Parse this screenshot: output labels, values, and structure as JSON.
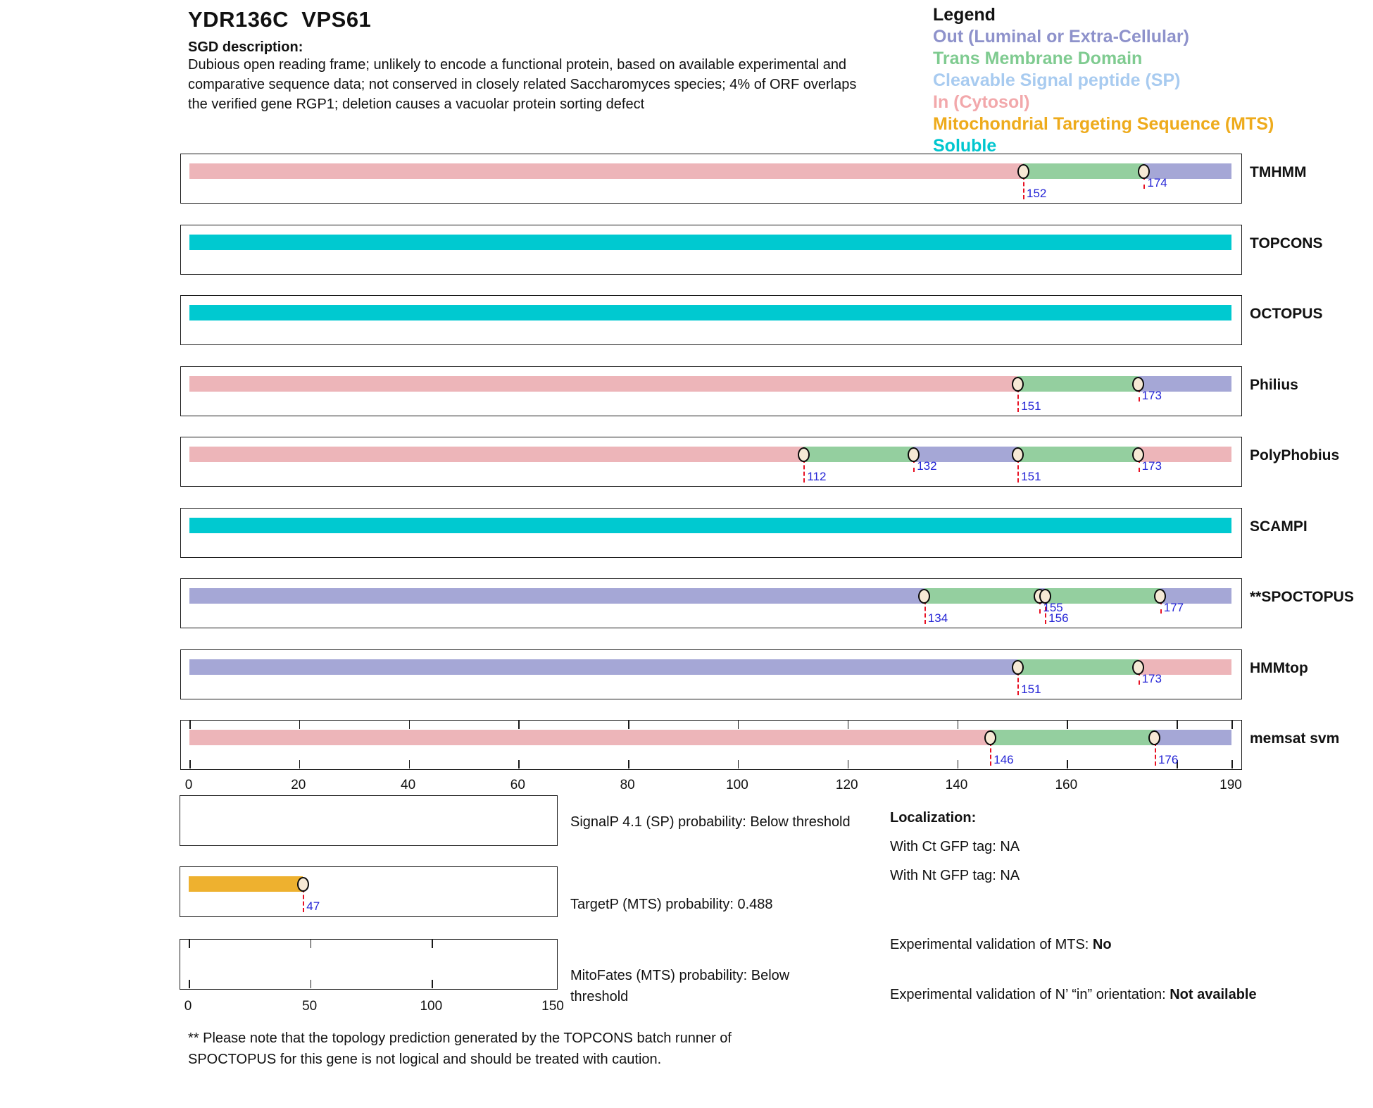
{
  "header": {
    "title": "YDR136C  VPS61",
    "sgd_label": "SGD description:",
    "description": "Dubious open reading frame; unlikely to encode a functional protein, based on available experimental and\ncomparative sequence data; not conserved in closely related Saccharomyces species; 4% of ORF overlaps\nthe verified gene RGP1; deletion causes a vacuolar protein sorting defect"
  },
  "legend": {
    "title": "Legend",
    "items": [
      {
        "label": "Out (Luminal or Extra-Cellular)",
        "color": "#8e92cb",
        "region": "out"
      },
      {
        "label": "Trans Membrane Domain",
        "color": "#7fcb90",
        "region": "tm"
      },
      {
        "label": "Cleavable Signal peptide (SP)",
        "color": "#a8cbf0",
        "region": "sp"
      },
      {
        "label": "In (Cytosol)",
        "color": "#f2a8ab",
        "region": "in"
      },
      {
        "label": "Mitochondrial Targeting Sequence (MTS)",
        "color": "#eeab1c",
        "region": "mts"
      },
      {
        "label": "Soluble",
        "color": "#00c6cf",
        "region": "soluble"
      }
    ]
  },
  "colors": {
    "region_fill": {
      "in": "#edb5b9",
      "tm": "#94cf9f",
      "out": "#a5a7d6",
      "soluble": "#00c9d0",
      "mts": "#eeb12f",
      "sp": "#a8cbf0"
    },
    "marker_line": "#e81123",
    "marker_label": "#2424d6",
    "marker_fill": "#f6e9d5"
  },
  "chart_data": {
    "type": "topology-tracks",
    "xlim": [
      0,
      190
    ],
    "axis_tick_labels": [
      0,
      20,
      40,
      60,
      80,
      100,
      120,
      140,
      160,
      190
    ],
    "in_box_ticks": [
      0,
      20,
      40,
      60,
      80,
      100,
      120,
      140,
      160,
      180,
      190
    ],
    "tracks": [
      {
        "name": "TMHMM",
        "segments": [
          {
            "region": "in",
            "start": 0,
            "end": 152
          },
          {
            "region": "tm",
            "start": 152,
            "end": 174
          },
          {
            "region": "out",
            "start": 174,
            "end": 190
          }
        ],
        "markers": [
          {
            "pos": 152,
            "level": 0
          },
          {
            "pos": 174,
            "level": 1
          }
        ],
        "ticks": false
      },
      {
        "name": "TOPCONS",
        "segments": [
          {
            "region": "soluble",
            "start": 0,
            "end": 190
          }
        ],
        "markers": [],
        "ticks": false
      },
      {
        "name": "OCTOPUS",
        "segments": [
          {
            "region": "soluble",
            "start": 0,
            "end": 190
          }
        ],
        "markers": [],
        "ticks": false
      },
      {
        "name": "Philius",
        "segments": [
          {
            "region": "in",
            "start": 0,
            "end": 151
          },
          {
            "region": "tm",
            "start": 151,
            "end": 173
          },
          {
            "region": "out",
            "start": 173,
            "end": 190
          }
        ],
        "markers": [
          {
            "pos": 151,
            "level": 0
          },
          {
            "pos": 173,
            "level": 1
          }
        ],
        "ticks": false
      },
      {
        "name": "PolyPhobius",
        "segments": [
          {
            "region": "in",
            "start": 0,
            "end": 112
          },
          {
            "region": "tm",
            "start": 112,
            "end": 132
          },
          {
            "region": "out",
            "start": 132,
            "end": 151
          },
          {
            "region": "tm",
            "start": 151,
            "end": 173
          },
          {
            "region": "in",
            "start": 173,
            "end": 190
          }
        ],
        "markers": [
          {
            "pos": 112,
            "level": 0
          },
          {
            "pos": 132,
            "level": 1
          },
          {
            "pos": 151,
            "level": 0
          },
          {
            "pos": 173,
            "level": 1
          }
        ],
        "ticks": false
      },
      {
        "name": "SCAMPI",
        "segments": [
          {
            "region": "soluble",
            "start": 0,
            "end": 190
          }
        ],
        "markers": [],
        "ticks": false
      },
      {
        "name": "**SPOCTOPUS",
        "segments": [
          {
            "region": "out",
            "start": 0,
            "end": 134
          },
          {
            "region": "tm",
            "start": 134,
            "end": 155
          },
          {
            "region": "out",
            "start": 155,
            "end": 156
          },
          {
            "region": "tm",
            "start": 156,
            "end": 177
          },
          {
            "region": "out",
            "start": 177,
            "end": 190
          }
        ],
        "markers": [
          {
            "pos": 134,
            "level": 0
          },
          {
            "pos": 155,
            "level": 1
          },
          {
            "pos": 156,
            "level": 0
          },
          {
            "pos": 177,
            "level": 1
          }
        ],
        "ticks": false
      },
      {
        "name": "HMMtop",
        "segments": [
          {
            "region": "out",
            "start": 0,
            "end": 151
          },
          {
            "region": "tm",
            "start": 151,
            "end": 173
          },
          {
            "region": "in",
            "start": 173,
            "end": 190
          }
        ],
        "markers": [
          {
            "pos": 151,
            "level": 0
          },
          {
            "pos": 173,
            "level": 1
          }
        ],
        "ticks": false
      },
      {
        "name": "memsat svm",
        "segments": [
          {
            "region": "in",
            "start": 0,
            "end": 146
          },
          {
            "region": "tm",
            "start": 146,
            "end": 176
          },
          {
            "region": "out",
            "start": 176,
            "end": 190
          }
        ],
        "markers": [
          {
            "pos": 146,
            "level": 0
          },
          {
            "pos": 176,
            "level": 0
          }
        ],
        "ticks": true
      }
    ],
    "probability_plots": {
      "xlim": [
        0,
        150
      ],
      "axis_tick_labels": [
        0,
        50,
        100,
        150
      ],
      "in_box_ticks": [
        0,
        50,
        100
      ],
      "plots": [
        {
          "caption": "SignalP 4.1 (SP) probability: Below threshold",
          "bar": null,
          "markers": []
        },
        {
          "caption": "TargetP (MTS) probability: 0.488",
          "bar": {
            "region": "mts",
            "start": 0,
            "end": 47
          },
          "markers": [
            {
              "pos": 47,
              "level": 0
            }
          ]
        },
        {
          "caption": "MitoFates (MTS) probability: Below\nthreshold",
          "bar": null,
          "markers": []
        }
      ]
    }
  },
  "info": {
    "localization_label": "Localization:",
    "lines": [
      "With Ct GFP tag: NA",
      "With Nt GFP tag: NA"
    ],
    "mts_validation_prefix": "Experimental validation of MTS: ",
    "mts_validation_value": "No",
    "nterm_validation_prefix": "Experimental validation of N’ “in” orientation: ",
    "nterm_validation_value": "Not available"
  },
  "footnote": "** Please note that the topology prediction generated by the TOPCONS batch runner of\nSPOCTOPUS for this gene is not logical and should be treated with caution."
}
